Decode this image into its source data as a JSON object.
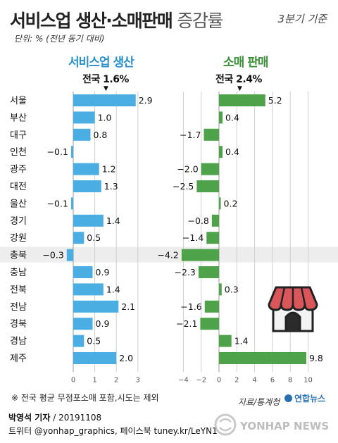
{
  "header": {
    "title_main": "서비스업 생산·소매판매",
    "title_sub": "증감률",
    "period": "3분기 기준",
    "unit": "단위: % (전년 동기 대비)"
  },
  "footer": {
    "footnote": "※ 전국 평균 무점포소매 포함,시도는 제외",
    "source": "자료/통계청",
    "brand": "연합뉴스",
    "byline_name": "박영석 기자",
    "byline_date": "/ 20191108",
    "social": "트위터 @yonhap_graphics, 페이스북 tuney.kr/LeYN1",
    "watermark": "YONHAP NEWS"
  },
  "highlighted_region": "충북",
  "icons": [
    "shop-icon",
    "yonhap-logo-icon"
  ],
  "chart_data": [
    {
      "type": "bar",
      "orientation": "horizontal",
      "title": "서비스업 생산",
      "national_label": "전국 1.6%",
      "national_value": 1.6,
      "color": "#4aaee3",
      "categories": [
        "서울",
        "부산",
        "대구",
        "인천",
        "광주",
        "대전",
        "울산",
        "경기",
        "강원",
        "충북",
        "충남",
        "전북",
        "전남",
        "경북",
        "경남",
        "제주"
      ],
      "values": [
        2.9,
        1.0,
        0.8,
        -0.1,
        1.2,
        1.3,
        -0.1,
        1.4,
        0.5,
        -0.3,
        0.9,
        1.4,
        2.1,
        0.9,
        0.5,
        2.0
      ],
      "value_labels": [
        "2.9",
        "1.0",
        "0.8",
        "−0.1",
        "1.2",
        "1.3",
        "−0.1",
        "1.4",
        "0.5",
        "−0.3",
        "0.9",
        "1.4",
        "2.1",
        "0.9",
        "0.5",
        "2.0"
      ],
      "xticks": [
        "0",
        "1",
        "2",
        "3"
      ],
      "xlim": [
        -0.5,
        3
      ]
    },
    {
      "type": "bar",
      "orientation": "horizontal",
      "title": "소매 판매",
      "national_label": "전국 2.4%",
      "national_value": 2.4,
      "color": "#4ea34a",
      "categories": [
        "서울",
        "부산",
        "대구",
        "인천",
        "광주",
        "대전",
        "울산",
        "경기",
        "강원",
        "충북",
        "충남",
        "전북",
        "전남",
        "경북",
        "경남",
        "제주"
      ],
      "values": [
        5.2,
        0.4,
        -1.7,
        0.4,
        -2.0,
        -2.5,
        0.2,
        -0.8,
        -1.4,
        -4.2,
        -2.3,
        0.3,
        -1.6,
        -2.1,
        1.4,
        9.8
      ],
      "value_labels": [
        "5.2",
        "0.4",
        "−1.7",
        "0.4",
        "−2.0",
        "−2.5",
        "0.2",
        "−0.8",
        "−1.4",
        "−4.2",
        "−2.3",
        "0.3",
        "−1.6",
        "−2.1",
        "1.4",
        "9.8"
      ],
      "xticks": [
        "−4",
        "−2",
        "0",
        "2",
        "4",
        "6",
        "8",
        "10"
      ],
      "xlim": [
        -5,
        10
      ]
    }
  ]
}
